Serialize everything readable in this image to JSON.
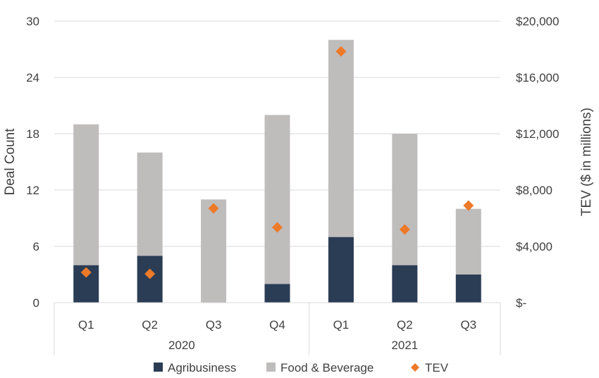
{
  "chart_data": {
    "type": "bar",
    "stacked": true,
    "categories": [
      "Q1",
      "Q2",
      "Q3",
      "Q4",
      "Q1",
      "Q2",
      "Q3"
    ],
    "groups": [
      {
        "label": "2020",
        "categories": [
          0,
          1,
          2,
          3
        ]
      },
      {
        "label": "2021",
        "categories": [
          4,
          5,
          6
        ]
      }
    ],
    "series": [
      {
        "name": "Agribusiness",
        "axis": "left",
        "kind": "bar",
        "color": "#2b3d55",
        "values": [
          4,
          5,
          0,
          2,
          7,
          4,
          3
        ]
      },
      {
        "name": "Food & Beverage",
        "axis": "left",
        "kind": "bar",
        "color": "#bfbcbc",
        "values": [
          15,
          11,
          11,
          18,
          21,
          14,
          7
        ]
      },
      {
        "name": "TEV",
        "axis": "right",
        "kind": "scatter",
        "marker": "diamond",
        "color": "#ec7a29",
        "values": [
          2150,
          2050,
          6700,
          5350,
          17850,
          5200,
          6900
        ]
      }
    ],
    "ylabel": "Deal Count",
    "ylim": [
      0,
      30
    ],
    "yticks": [
      "0",
      "6",
      "12",
      "18",
      "24",
      "30"
    ],
    "y2label": "TEV ($ in millions)",
    "y2lim": [
      0,
      20000
    ],
    "y2ticks": [
      "$-",
      "$4,000",
      "$8,000",
      "$12,000",
      "$16,000",
      "$20,000"
    ],
    "grid": true,
    "legend": "bottom"
  }
}
